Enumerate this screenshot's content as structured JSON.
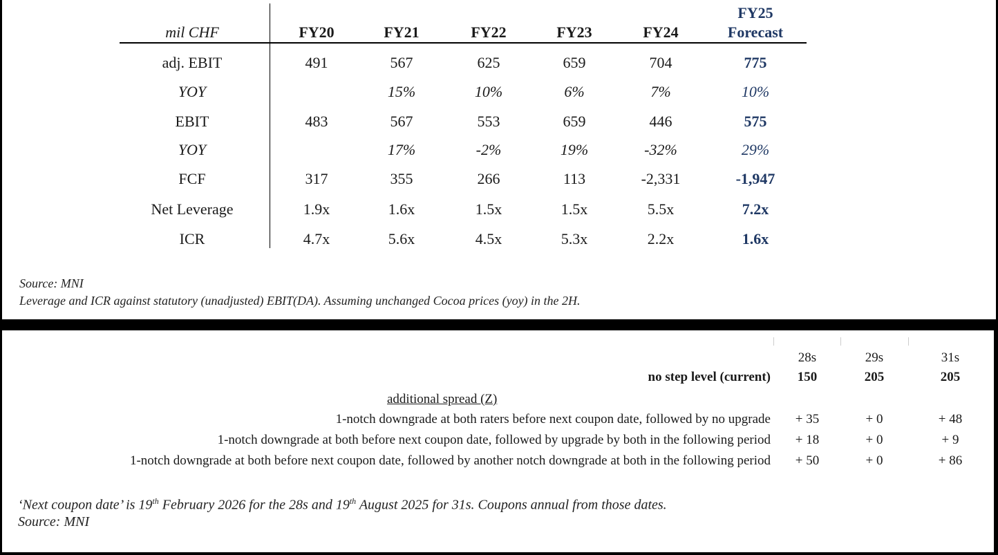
{
  "top_table": {
    "unit_label": "mil CHF",
    "columns": [
      "FY20",
      "FY21",
      "FY22",
      "FY23",
      "FY24"
    ],
    "forecast_header": [
      "FY25",
      "Forecast"
    ],
    "rows": [
      {
        "label": "adj. EBIT",
        "values": [
          "491",
          "567",
          "625",
          "659",
          "704",
          "775"
        ]
      },
      {
        "label": "YOY",
        "values": [
          "",
          "15%",
          "10%",
          "6%",
          "7%",
          "10%"
        ]
      },
      {
        "label": "EBIT",
        "values": [
          "483",
          "567",
          "553",
          "659",
          "446",
          "575"
        ]
      },
      {
        "label": "YOY",
        "values": [
          "",
          "17%",
          "-2%",
          "19%",
          "-32%",
          "29%"
        ]
      },
      {
        "label": "FCF",
        "values": [
          "317",
          "355",
          "266",
          "113",
          "-2,331",
          "-1,947"
        ]
      },
      {
        "label": "Net Leverage",
        "values": [
          "1.9x",
          "1.6x",
          "1.5x",
          "1.5x",
          "5.5x",
          "7.2x"
        ]
      },
      {
        "label": "ICR",
        "values": [
          "4.7x",
          "5.6x",
          "4.5x",
          "5.3x",
          "2.2x",
          "1.6x"
        ]
      }
    ],
    "source": "Source: MNI",
    "footnote": "Leverage and ICR against statutory (unadjusted) EBIT(DA). Assuming unchanged Cocoa prices (yoy) in the 2H."
  },
  "bottom_table": {
    "columns": [
      "28s",
      "29s",
      "31s"
    ],
    "base": {
      "label": "no step level (current)",
      "values": [
        "150",
        "205",
        "205"
      ]
    },
    "section_label": "additional spread (Z)",
    "scenarios": [
      {
        "label": "1-notch downgrade at both raters before next coupon date, followed by no upgrade",
        "values": [
          "+ 35",
          "+ 0",
          "+ 48"
        ]
      },
      {
        "label": "1-notch downgrade at both before next coupon date, followed by upgrade by both in the following period",
        "values": [
          "+ 18",
          "+ 0",
          "+ 9"
        ]
      },
      {
        "label": "1-notch downgrade at both  before next coupon date, followed by another notch downgrade at both in the following period",
        "values": [
          "+ 50",
          "+ 0",
          "+ 86"
        ]
      }
    ],
    "note_parts": [
      "‘Next coupon date’ is 19",
      "th",
      " February 2026 for the 28s and 19",
      "th",
      " August 2025 for 31s. Coupons annual from those dates."
    ],
    "source": "Source: MNI"
  }
}
